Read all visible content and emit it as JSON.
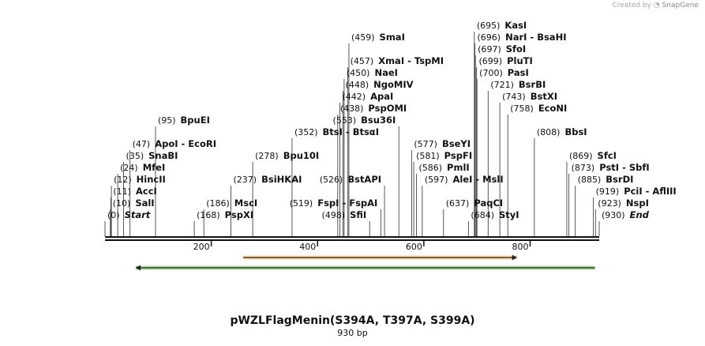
{
  "credit": {
    "prefix": "Created by",
    "brand": "SnapGene"
  },
  "plasmid": {
    "name": "pWZLFlagMenin(S394A, T397A, S399A)",
    "length_label": "930 bp",
    "length": 930
  },
  "ruler": {
    "ticks": [
      200,
      400,
      600,
      800
    ]
  },
  "features": [
    {
      "name": "orange-feature",
      "start": 260,
      "end": 775,
      "direction": "forward",
      "color": "#f2a13a"
    },
    {
      "name": "green-feature",
      "start": 58,
      "end": 922,
      "direction": "reverse",
      "color": "#3da822"
    }
  ],
  "sites": [
    {
      "pos": "(0)",
      "text": "Start",
      "special": true,
      "at": 0,
      "row": 0
    },
    {
      "pos": "(10)",
      "text": "SalI",
      "at": 10,
      "row": 1
    },
    {
      "pos": "(11)",
      "text": "AccI",
      "at": 11,
      "row": 2
    },
    {
      "pos": "(12)",
      "text": "HincII",
      "at": 12,
      "row": 3
    },
    {
      "pos": "(24)",
      "text": "MfeI",
      "at": 24,
      "row": 4
    },
    {
      "pos": "(35)",
      "text": "SnaBI",
      "at": 35,
      "row": 5
    },
    {
      "pos": "(47)",
      "text": "ApoI  -  EcoRI",
      "at": 47,
      "row": 6
    },
    {
      "pos": "(95)",
      "text": "BpuEI",
      "at": 95,
      "row": 8
    },
    {
      "pos": "(168)",
      "text": "PspXI",
      "at": 168,
      "row": 0
    },
    {
      "pos": "(186)",
      "text": "MscI",
      "at": 186,
      "row": 1
    },
    {
      "pos": "(237)",
      "text": "BsiHKAI",
      "at": 237,
      "row": 3
    },
    {
      "pos": "(278)",
      "text": "Bpu10I",
      "at": 278,
      "row": 5
    },
    {
      "pos": "(352)",
      "text": "BtsI  -  BtsαI",
      "at": 352,
      "row": 7
    },
    {
      "pos": "(438)",
      "text": "PspOMI",
      "at": 438,
      "row": 9
    },
    {
      "pos": "(442)",
      "text": "ApaI",
      "at": 442,
      "row": 10
    },
    {
      "pos": "(448)",
      "text": "NgoMIV",
      "at": 448,
      "row": 11
    },
    {
      "pos": "(450)",
      "text": "NaeI",
      "at": 450,
      "row": 12
    },
    {
      "pos": "(457)",
      "text": "XmaI  -  TspMI",
      "at": 457,
      "row": 13
    },
    {
      "pos": "(459)",
      "text": "SmaI",
      "at": 459,
      "row": 15
    },
    {
      "pos": "(498)",
      "text": "SfiI",
      "at": 498,
      "row": 0,
      "side": "left"
    },
    {
      "pos": "(519)",
      "text": "FspI  -  FspAI",
      "at": 519,
      "row": 1,
      "side": "left"
    },
    {
      "pos": "(526)",
      "text": "BstAPI",
      "at": 526,
      "row": 3,
      "side": "left"
    },
    {
      "pos": "(553)",
      "text": "Bsu36I",
      "at": 553,
      "row": 8,
      "side": "left"
    },
    {
      "pos": "(577)",
      "text": "BseYI",
      "at": 577,
      "row": 6
    },
    {
      "pos": "(581)",
      "text": "PspFI",
      "at": 581,
      "row": 5
    },
    {
      "pos": "(586)",
      "text": "PmlI",
      "at": 586,
      "row": 4
    },
    {
      "pos": "(597)",
      "text": "AleI  -  MslI",
      "at": 597,
      "row": 3
    },
    {
      "pos": "(637)",
      "text": "PaqCI",
      "at": 637,
      "row": 1
    },
    {
      "pos": "(684)",
      "text": "StyI",
      "at": 684,
      "row": 0
    },
    {
      "pos": "(695)",
      "text": "KasI",
      "at": 695,
      "row": 16
    },
    {
      "pos": "(696)",
      "text": "NarI  -  BsaHI",
      "at": 696,
      "row": 15
    },
    {
      "pos": "(697)",
      "text": "SfoI",
      "at": 697,
      "row": 14
    },
    {
      "pos": "(699)",
      "text": "PluTI",
      "at": 699,
      "row": 13
    },
    {
      "pos": "(700)",
      "text": "PasI",
      "at": 700,
      "row": 12
    },
    {
      "pos": "(721)",
      "text": "BsrBI",
      "at": 721,
      "row": 11
    },
    {
      "pos": "(743)",
      "text": "BstXI",
      "at": 743,
      "row": 10
    },
    {
      "pos": "(758)",
      "text": "EcoNI",
      "at": 758,
      "row": 9
    },
    {
      "pos": "(808)",
      "text": "BbsI",
      "at": 808,
      "row": 7
    },
    {
      "pos": "(869)",
      "text": "SfcI",
      "at": 869,
      "row": 5
    },
    {
      "pos": "(873)",
      "text": "PstI  -  SbfI",
      "at": 873,
      "row": 4
    },
    {
      "pos": "(885)",
      "text": "BsrDI",
      "at": 885,
      "row": 3
    },
    {
      "pos": "(919)",
      "text": "PciI  -  AflIII",
      "at": 919,
      "row": 2
    },
    {
      "pos": "(923)",
      "text": "NspI",
      "at": 923,
      "row": 1
    },
    {
      "pos": "(930)",
      "text": "End",
      "special": true,
      "at": 930,
      "row": 0
    }
  ]
}
